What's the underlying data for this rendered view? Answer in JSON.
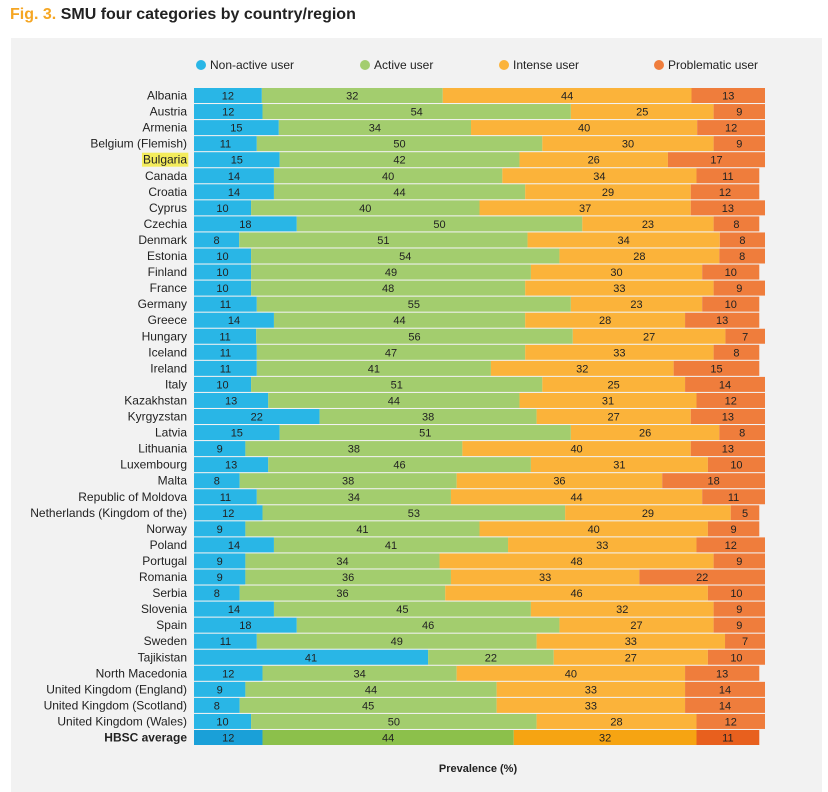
{
  "figure": {
    "number": "Fig. 3.",
    "title": "SMU four categories by country/region"
  },
  "colors": {
    "highlight": "#f4ec5c"
  },
  "chart_data": {
    "type": "bar",
    "orientation": "horizontal",
    "stacked": true,
    "xlabel": "Prevalence (%)",
    "xlim": [
      0,
      100
    ],
    "legend_position": "top",
    "highlighted_category": "Bulgaria",
    "average_category": "HBSC average",
    "categories": [
      "Albania",
      "Austria",
      "Armenia",
      "Belgium (Flemish)",
      "Bulgaria",
      "Canada",
      "Croatia",
      "Cyprus",
      "Czechia",
      "Denmark",
      "Estonia",
      "Finland",
      "France",
      "Germany",
      "Greece",
      "Hungary",
      "Iceland",
      "Ireland",
      "Italy",
      "Kazakhstan",
      "Kyrgyzstan",
      "Latvia",
      "Lithuania",
      "Luxembourg",
      "Malta",
      "Republic of Moldova",
      "Netherlands (Kingdom of the)",
      "Norway",
      "Poland",
      "Portugal",
      "Romania",
      "Serbia",
      "Slovenia",
      "Spain",
      "Sweden",
      "Tajikistan",
      "North Macedonia",
      "United Kingdom (England)",
      "United Kingdom (Scotland)",
      "United Kingdom (Wales)",
      "HBSC average"
    ],
    "series": [
      {
        "name": "Non-active user",
        "color": "#29b6e6",
        "avg_color": "#1aa0d8",
        "values": [
          12,
          12,
          15,
          11,
          15,
          14,
          14,
          10,
          18,
          8,
          10,
          10,
          10,
          11,
          14,
          11,
          11,
          11,
          10,
          13,
          22,
          15,
          9,
          13,
          8,
          11,
          12,
          9,
          14,
          9,
          9,
          8,
          14,
          18,
          11,
          41,
          12,
          9,
          8,
          10,
          12
        ]
      },
      {
        "name": "Active user",
        "color": "#a3cd6e",
        "avg_color": "#8cc04b",
        "values": [
          32,
          54,
          34,
          50,
          42,
          40,
          44,
          40,
          50,
          51,
          54,
          49,
          48,
          55,
          44,
          56,
          47,
          41,
          51,
          44,
          38,
          51,
          38,
          46,
          38,
          34,
          53,
          41,
          41,
          34,
          36,
          36,
          45,
          46,
          49,
          22,
          34,
          44,
          45,
          50,
          44
        ]
      },
      {
        "name": "Intense user",
        "color": "#fbb33a",
        "avg_color": "#f6a412",
        "values": [
          44,
          25,
          40,
          30,
          26,
          34,
          29,
          37,
          23,
          34,
          28,
          30,
          33,
          23,
          28,
          27,
          33,
          32,
          25,
          31,
          27,
          26,
          40,
          31,
          36,
          44,
          29,
          40,
          33,
          48,
          33,
          46,
          32,
          27,
          33,
          27,
          40,
          33,
          33,
          28,
          32
        ]
      },
      {
        "name": "Problematic user",
        "color": "#ef7d3c",
        "avg_color": "#e8601e",
        "values": [
          13,
          9,
          12,
          9,
          17,
          11,
          12,
          13,
          8,
          8,
          8,
          10,
          9,
          10,
          13,
          7,
          8,
          15,
          14,
          12,
          13,
          8,
          13,
          10,
          18,
          11,
          5,
          9,
          12,
          9,
          22,
          10,
          9,
          9,
          7,
          10,
          13,
          14,
          14,
          12,
          11
        ]
      }
    ]
  }
}
